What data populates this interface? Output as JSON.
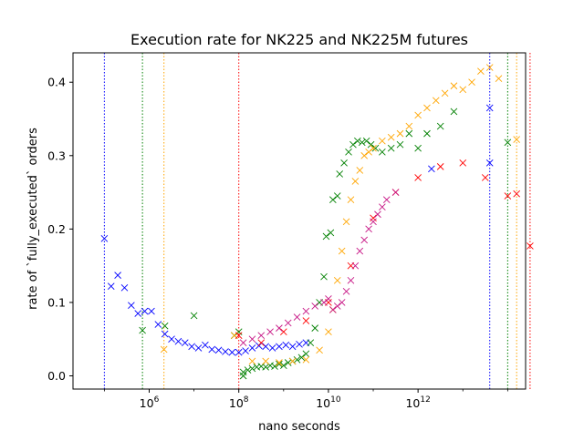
{
  "chart_data": {
    "type": "scatter",
    "title": "Execution rate for NK225 and NK225M futures",
    "xlabel": "nano seconds",
    "ylabel": "rate of `fully_executed` orders",
    "xscale": "log",
    "xlim_log10": [
      4.3,
      14.4
    ],
    "ylim": [
      -0.018,
      0.44
    ],
    "y_ticks": [
      0.0,
      0.1,
      0.2,
      0.3,
      0.4
    ],
    "y_tick_labels": [
      "0.0",
      "0.1",
      "0.2",
      "0.3",
      "0.4"
    ],
    "x_ticks_log10": [
      6,
      8,
      10,
      12
    ],
    "x_tick_labels": [
      "10^6",
      "10^8",
      "10^10",
      "10^12"
    ],
    "grid": false,
    "legend": "none",
    "marker": "x",
    "series": [
      {
        "color": "#0000ff",
        "vlines_log10": [
          5.0,
          13.6
        ],
        "points": [
          [
            5.0,
            0.187
          ],
          [
            5.15,
            0.122
          ],
          [
            5.3,
            0.137
          ],
          [
            5.45,
            0.12
          ],
          [
            5.6,
            0.096
          ],
          [
            5.75,
            0.085
          ],
          [
            5.9,
            0.088
          ],
          [
            6.05,
            0.088
          ],
          [
            6.2,
            0.07
          ],
          [
            6.35,
            0.057
          ],
          [
            6.5,
            0.05
          ],
          [
            6.65,
            0.047
          ],
          [
            6.8,
            0.045
          ],
          [
            6.95,
            0.04
          ],
          [
            7.1,
            0.038
          ],
          [
            7.25,
            0.042
          ],
          [
            7.4,
            0.036
          ],
          [
            7.55,
            0.035
          ],
          [
            7.7,
            0.033
          ],
          [
            7.85,
            0.032
          ],
          [
            8.0,
            0.032
          ],
          [
            8.15,
            0.034
          ],
          [
            8.3,
            0.038
          ],
          [
            8.45,
            0.041
          ],
          [
            8.6,
            0.04
          ],
          [
            8.75,
            0.038
          ],
          [
            8.9,
            0.04
          ],
          [
            9.05,
            0.042
          ],
          [
            9.2,
            0.04
          ],
          [
            9.35,
            0.043
          ],
          [
            9.5,
            0.045
          ],
          [
            12.3,
            0.282
          ],
          [
            13.6,
            0.365
          ],
          [
            13.6,
            0.29
          ]
        ]
      },
      {
        "color": "#008000",
        "vlines_log10": [
          5.85,
          14.0
        ],
        "points": [
          [
            5.85,
            0.062
          ],
          [
            6.35,
            0.068
          ],
          [
            7.0,
            0.082
          ],
          [
            7.9,
            0.055
          ],
          [
            8.0,
            0.06
          ],
          [
            8.1,
            0.005
          ],
          [
            8.1,
            0.0
          ],
          [
            8.2,
            0.008
          ],
          [
            8.3,
            0.01
          ],
          [
            8.4,
            0.012
          ],
          [
            8.5,
            0.013
          ],
          [
            8.6,
            0.012
          ],
          [
            8.7,
            0.014
          ],
          [
            8.8,
            0.013
          ],
          [
            8.9,
            0.016
          ],
          [
            9.0,
            0.014
          ],
          [
            9.1,
            0.018
          ],
          [
            9.2,
            0.02
          ],
          [
            9.3,
            0.022
          ],
          [
            9.4,
            0.025
          ],
          [
            9.5,
            0.03
          ],
          [
            9.6,
            0.045
          ],
          [
            9.7,
            0.065
          ],
          [
            9.8,
            0.1
          ],
          [
            9.9,
            0.135
          ],
          [
            9.95,
            0.19
          ],
          [
            10.05,
            0.195
          ],
          [
            10.1,
            0.24
          ],
          [
            10.2,
            0.245
          ],
          [
            10.25,
            0.275
          ],
          [
            10.35,
            0.29
          ],
          [
            10.45,
            0.305
          ],
          [
            10.55,
            0.315
          ],
          [
            10.65,
            0.32
          ],
          [
            10.75,
            0.318
          ],
          [
            10.85,
            0.32
          ],
          [
            10.95,
            0.315
          ],
          [
            11.05,
            0.31
          ],
          [
            11.2,
            0.305
          ],
          [
            11.4,
            0.31
          ],
          [
            11.6,
            0.315
          ],
          [
            11.8,
            0.33
          ],
          [
            12.0,
            0.31
          ],
          [
            12.2,
            0.33
          ],
          [
            12.5,
            0.34
          ],
          [
            12.8,
            0.36
          ],
          [
            14.0,
            0.318
          ]
        ]
      },
      {
        "color": "#ffa500",
        "vlines_log10": [
          6.33,
          14.2
        ],
        "points": [
          [
            6.33,
            0.036
          ],
          [
            7.9,
            0.055
          ],
          [
            8.3,
            0.02
          ],
          [
            8.6,
            0.02
          ],
          [
            8.9,
            0.018
          ],
          [
            9.2,
            0.02
          ],
          [
            9.5,
            0.022
          ],
          [
            9.8,
            0.035
          ],
          [
            10.0,
            0.06
          ],
          [
            10.1,
            0.09
          ],
          [
            10.2,
            0.13
          ],
          [
            10.3,
            0.17
          ],
          [
            10.4,
            0.21
          ],
          [
            10.5,
            0.24
          ],
          [
            10.6,
            0.265
          ],
          [
            10.7,
            0.28
          ],
          [
            10.8,
            0.3
          ],
          [
            10.9,
            0.305
          ],
          [
            11.0,
            0.31
          ],
          [
            11.2,
            0.32
          ],
          [
            11.4,
            0.325
          ],
          [
            11.6,
            0.33
          ],
          [
            11.8,
            0.34
          ],
          [
            12.0,
            0.355
          ],
          [
            12.2,
            0.365
          ],
          [
            12.4,
            0.375
          ],
          [
            12.6,
            0.385
          ],
          [
            12.8,
            0.395
          ],
          [
            13.0,
            0.39
          ],
          [
            13.2,
            0.4
          ],
          [
            13.4,
            0.415
          ],
          [
            13.6,
            0.42
          ],
          [
            13.8,
            0.405
          ],
          [
            14.2,
            0.322
          ]
        ]
      },
      {
        "color": "#ff0000",
        "vlines_log10": [
          8.0,
          14.5
        ],
        "points": [
          [
            8.0,
            0.055
          ],
          [
            8.5,
            0.045
          ],
          [
            9.0,
            0.06
          ],
          [
            9.5,
            0.075
          ],
          [
            10.0,
            0.1
          ],
          [
            10.5,
            0.15
          ],
          [
            11.0,
            0.215
          ],
          [
            11.5,
            0.25
          ],
          [
            12.0,
            0.27
          ],
          [
            12.5,
            0.285
          ],
          [
            13.0,
            0.29
          ],
          [
            13.5,
            0.27
          ],
          [
            14.0,
            0.245
          ],
          [
            14.2,
            0.248
          ],
          [
            14.5,
            0.177
          ]
        ]
      },
      {
        "color": "#c71585",
        "vlines_log10": [],
        "points": [
          [
            8.1,
            0.045
          ],
          [
            8.3,
            0.05
          ],
          [
            8.5,
            0.055
          ],
          [
            8.7,
            0.06
          ],
          [
            8.9,
            0.065
          ],
          [
            9.1,
            0.072
          ],
          [
            9.3,
            0.08
          ],
          [
            9.5,
            0.088
          ],
          [
            9.7,
            0.095
          ],
          [
            9.9,
            0.1
          ],
          [
            10.0,
            0.105
          ],
          [
            10.1,
            0.09
          ],
          [
            10.2,
            0.095
          ],
          [
            10.3,
            0.1
          ],
          [
            10.4,
            0.115
          ],
          [
            10.5,
            0.13
          ],
          [
            10.6,
            0.15
          ],
          [
            10.7,
            0.17
          ],
          [
            10.8,
            0.185
          ],
          [
            10.9,
            0.2
          ],
          [
            11.0,
            0.21
          ],
          [
            11.1,
            0.22
          ],
          [
            11.2,
            0.23
          ],
          [
            11.3,
            0.24
          ],
          [
            11.5,
            0.25
          ]
        ]
      }
    ]
  }
}
